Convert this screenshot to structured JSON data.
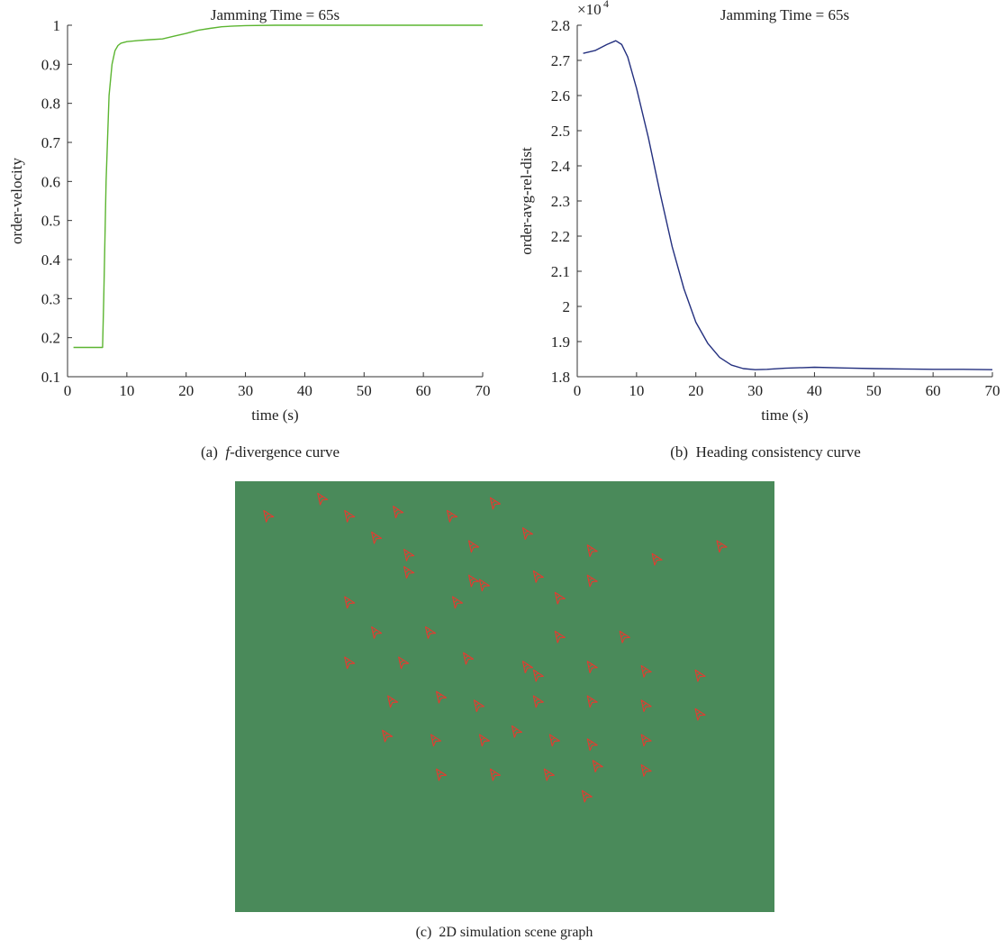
{
  "chart_data": [
    {
      "type": "line",
      "title": "Jamming Time = 65s",
      "xlabel": "time (s)",
      "ylabel": "order-velocity",
      "xlim": [
        0,
        70
      ],
      "ylim": [
        0.1,
        1
      ],
      "xticks": [
        0,
        10,
        20,
        30,
        40,
        50,
        60,
        70
      ],
      "yticks": [
        0.1,
        0.2,
        0.3,
        0.4,
        0.5,
        0.6,
        0.7,
        0.8,
        0.9,
        1
      ],
      "ytick_labels": [
        "0.1",
        "0.2",
        "0.3",
        "0.4",
        "0.5",
        "0.6",
        "0.7",
        "0.8",
        "0.9",
        "1"
      ],
      "color": "#5cb531",
      "series": [
        {
          "x": [
            1,
            5.9,
            6.1,
            6.5,
            7,
            7.5,
            8,
            8.5,
            9,
            10,
            12,
            14,
            16,
            18,
            20,
            22,
            24,
            26,
            28,
            30,
            35,
            40,
            50,
            60,
            70
          ],
          "y": [
            0.175,
            0.175,
            0.3,
            0.6,
            0.82,
            0.9,
            0.935,
            0.948,
            0.954,
            0.958,
            0.961,
            0.963,
            0.965,
            0.972,
            0.979,
            0.987,
            0.992,
            0.996,
            0.998,
            0.999,
            1.0,
            1.0,
            1.0,
            1.0,
            1.0
          ]
        }
      ],
      "caption": {
        "label": "(a)",
        "symbol": "f",
        "rest": "-divergence curve"
      }
    },
    {
      "type": "line",
      "title": "Jamming Time = 65s",
      "multiplier": "×10",
      "multiplier_exp": "4",
      "xlabel": "time (s)",
      "ylabel": "order-avg-rel-dist",
      "xlim": [
        0,
        70
      ],
      "ylim": [
        1.8,
        2.8
      ],
      "xticks": [
        0,
        10,
        20,
        30,
        40,
        50,
        60,
        70
      ],
      "yticks": [
        1.8,
        1.9,
        2,
        2.1,
        2.2,
        2.3,
        2.4,
        2.5,
        2.6,
        2.7,
        2.8
      ],
      "ytick_labels": [
        "1.8",
        "1.9",
        "2",
        "2.1",
        "2.2",
        "2.3",
        "2.4",
        "2.5",
        "2.6",
        "2.7",
        "2.8"
      ],
      "color": "#24307f",
      "series": [
        {
          "x": [
            1,
            3,
            5,
            6.5,
            7.5,
            8.5,
            10,
            12,
            14,
            16,
            18,
            20,
            22,
            24,
            26,
            28,
            30,
            32,
            35,
            40,
            45,
            50,
            55,
            60,
            65,
            70
          ],
          "y": [
            2.72,
            2.728,
            2.745,
            2.756,
            2.745,
            2.71,
            2.62,
            2.48,
            2.32,
            2.17,
            2.05,
            1.955,
            1.895,
            1.855,
            1.833,
            1.823,
            1.82,
            1.821,
            1.824,
            1.827,
            1.825,
            1.823,
            1.822,
            1.821,
            1.821,
            1.82
          ]
        }
      ],
      "caption": {
        "label": "(b)",
        "text": "Heading consistency curve"
      }
    }
  ],
  "scene": {
    "background_color": "#4a8a5a",
    "agent_color": "#e8392f",
    "agent_icon": "arrowhead-icon",
    "agents": [
      [
        6,
        8
      ],
      [
        16,
        4
      ],
      [
        21,
        8
      ],
      [
        30,
        7
      ],
      [
        40,
        8
      ],
      [
        48,
        5
      ],
      [
        26,
        13
      ],
      [
        32,
        17
      ],
      [
        44,
        15
      ],
      [
        54,
        12
      ],
      [
        66,
        16
      ],
      [
        78,
        18
      ],
      [
        90,
        15
      ],
      [
        32,
        21
      ],
      [
        44,
        23
      ],
      [
        46,
        24
      ],
      [
        56,
        22
      ],
      [
        66,
        23
      ],
      [
        21,
        28
      ],
      [
        41,
        28
      ],
      [
        60,
        27
      ],
      [
        26,
        35
      ],
      [
        36,
        35
      ],
      [
        60,
        36
      ],
      [
        72,
        36
      ],
      [
        21,
        42
      ],
      [
        31,
        42
      ],
      [
        43,
        41
      ],
      [
        54,
        43
      ],
      [
        56,
        45
      ],
      [
        66,
        43
      ],
      [
        76,
        44
      ],
      [
        86,
        45
      ],
      [
        29,
        51
      ],
      [
        38,
        50
      ],
      [
        45,
        52
      ],
      [
        56,
        51
      ],
      [
        66,
        51
      ],
      [
        76,
        52
      ],
      [
        86,
        54
      ],
      [
        28,
        59
      ],
      [
        37,
        60
      ],
      [
        46,
        60
      ],
      [
        52,
        58
      ],
      [
        59,
        60
      ],
      [
        66,
        61
      ],
      [
        76,
        60
      ],
      [
        38,
        68
      ],
      [
        48,
        68
      ],
      [
        58,
        68
      ],
      [
        67,
        66
      ],
      [
        76,
        67
      ],
      [
        65,
        73
      ]
    ],
    "caption": {
      "label": "(c)",
      "text": "2D simulation scene graph"
    }
  }
}
